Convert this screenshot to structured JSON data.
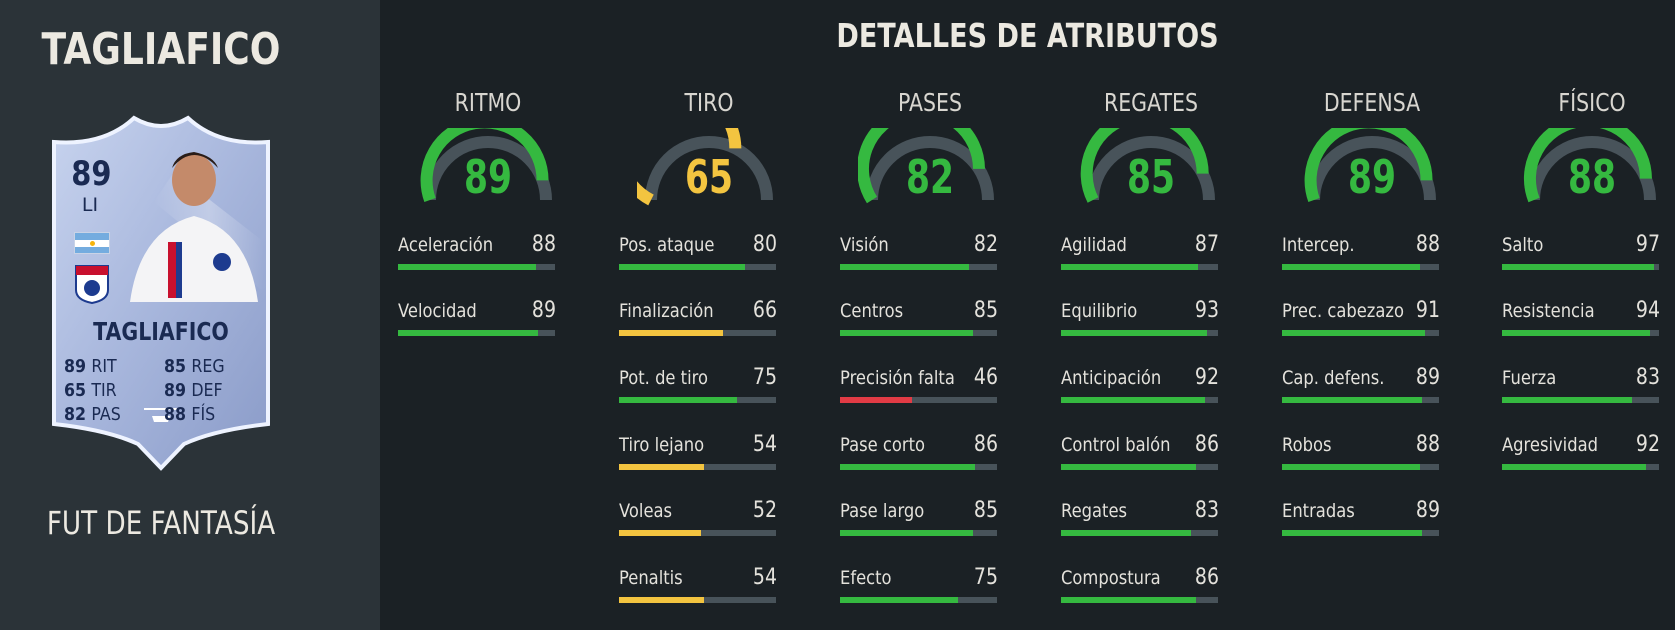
{
  "player": {
    "name": "TAGLIAFICO",
    "version": "FUT DE FANTASÍA",
    "card": {
      "rating": "89",
      "position": "LI",
      "name": "TAGLIAFICO",
      "stats": [
        {
          "value": "89",
          "label": "RIT"
        },
        {
          "value": "85",
          "label": "REG"
        },
        {
          "value": "65",
          "label": "TIR"
        },
        {
          "value": "89",
          "label": "DEF"
        },
        {
          "value": "82",
          "label": "PAS"
        },
        {
          "value": "88",
          "label": "FÍS"
        }
      ]
    }
  },
  "title": "DETALLES DE ATRIBUTOS",
  "colors": {
    "green": "#35b940",
    "yellow": "#f3c440",
    "red": "#e23b45",
    "track": "#48535a"
  },
  "categories": [
    {
      "name": "RITMO",
      "value": 89,
      "attributes": [
        {
          "label": "Aceleración",
          "value": 88
        },
        {
          "label": "Velocidad",
          "value": 89
        }
      ]
    },
    {
      "name": "TIRO",
      "value": 65,
      "attributes": [
        {
          "label": "Pos. ataque",
          "value": 80
        },
        {
          "label": "Finalización",
          "value": 66
        },
        {
          "label": "Pot. de tiro",
          "value": 75
        },
        {
          "label": "Tiro lejano",
          "value": 54
        },
        {
          "label": "Voleas",
          "value": 52
        },
        {
          "label": "Penaltis",
          "value": 54
        }
      ]
    },
    {
      "name": "PASES",
      "value": 82,
      "attributes": [
        {
          "label": "Visión",
          "value": 82
        },
        {
          "label": "Centros",
          "value": 85
        },
        {
          "label": "Precisión falta",
          "value": 46
        },
        {
          "label": "Pase corto",
          "value": 86
        },
        {
          "label": "Pase largo",
          "value": 85
        },
        {
          "label": "Efecto",
          "value": 75
        }
      ]
    },
    {
      "name": "REGATES",
      "value": 85,
      "attributes": [
        {
          "label": "Agilidad",
          "value": 87
        },
        {
          "label": "Equilibrio",
          "value": 93
        },
        {
          "label": "Anticipación",
          "value": 92
        },
        {
          "label": "Control balón",
          "value": 86
        },
        {
          "label": "Regates",
          "value": 83
        },
        {
          "label": "Compostura",
          "value": 86
        }
      ]
    },
    {
      "name": "DEFENSA",
      "value": 89,
      "attributes": [
        {
          "label": "Intercep.",
          "value": 88
        },
        {
          "label": "Prec. cabezazo",
          "value": 91
        },
        {
          "label": "Cap. defens.",
          "value": 89
        },
        {
          "label": "Robos",
          "value": 88
        },
        {
          "label": "Entradas",
          "value": 89
        }
      ]
    },
    {
      "name": "FÍSICO",
      "value": 88,
      "attributes": [
        {
          "label": "Salto",
          "value": 97
        },
        {
          "label": "Resistencia",
          "value": 94
        },
        {
          "label": "Fuerza",
          "value": 83
        },
        {
          "label": "Agresividad",
          "value": 92
        }
      ]
    }
  ]
}
